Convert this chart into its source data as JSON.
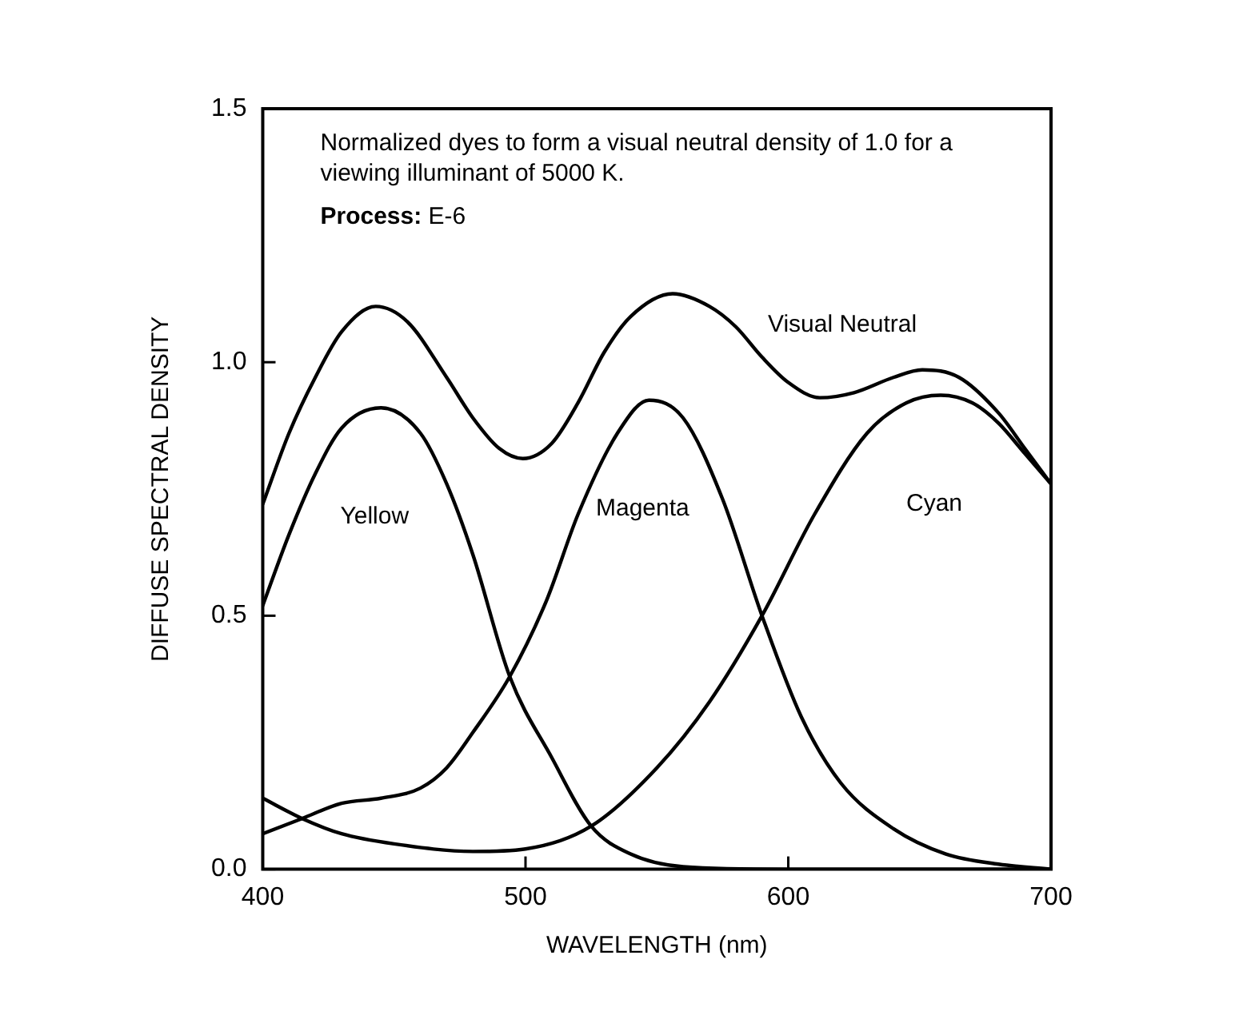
{
  "chart_data": {
    "type": "line",
    "xlabel": "WAVELENGTH (nm)",
    "ylabel": "DIFFUSE SPECTRAL DENSITY",
    "annotations": [
      "Normalized dyes to form a visual neutral density of 1.0 for a viewing illuminant of 5000 K.",
      "Process: E-6"
    ],
    "xlim": [
      400,
      700
    ],
    "xticks": [
      400,
      500,
      600,
      700
    ],
    "ylim": [
      0,
      1.5
    ],
    "yticks": [
      {
        "value": 0,
        "label": "0.0"
      },
      0.5,
      {
        "value": 1,
        "label": "1.0"
      },
      1.5
    ],
    "grid": false,
    "legend": false,
    "marker": "none",
    "line_style": "solid",
    "series": [
      {
        "name": "Visual Neutral",
        "color": "#000000",
        "x": [
          400,
          410,
          420,
          430,
          443,
          455,
          470,
          480,
          490,
          499,
          510,
          520,
          530,
          540,
          556,
          570,
          580,
          590,
          600,
          612,
          625,
          640,
          651,
          665,
          680,
          690,
          700
        ],
        "values": [
          0.72,
          0.86,
          0.97,
          1.06,
          1.11,
          1.08,
          0.97,
          0.89,
          0.83,
          0.81,
          0.84,
          0.92,
          1.02,
          1.09,
          1.135,
          1.11,
          1.07,
          1.01,
          0.96,
          0.93,
          0.94,
          0.97,
          0.985,
          0.97,
          0.9,
          0.83,
          0.76
        ]
      },
      {
        "name": "Yellow",
        "color": "#000000",
        "x": [
          400,
          410,
          420,
          430,
          445,
          460,
          470,
          480,
          494,
          510,
          525,
          540,
          560,
          600,
          700
        ],
        "values": [
          0.52,
          0.66,
          0.78,
          0.87,
          0.91,
          0.86,
          0.76,
          0.62,
          0.38,
          0.22,
          0.085,
          0.03,
          0.005,
          0,
          0
        ]
      },
      {
        "name": "Magenta",
        "color": "#000000",
        "x": [
          400,
          415,
          430,
          445,
          460,
          470,
          480,
          494,
          508,
          520,
          535,
          547,
          560,
          575,
          590,
          605,
          620,
          640,
          660,
          680,
          700
        ],
        "values": [
          0.07,
          0.1,
          0.13,
          0.14,
          0.16,
          0.2,
          0.27,
          0.38,
          0.53,
          0.7,
          0.86,
          0.925,
          0.89,
          0.73,
          0.5,
          0.3,
          0.17,
          0.08,
          0.03,
          0.01,
          0
        ]
      },
      {
        "name": "Cyan",
        "color": "#000000",
        "x": [
          400,
          415,
          430,
          450,
          480,
          500,
          525,
          550,
          570,
          590,
          610,
          630,
          645,
          658,
          670,
          680,
          690,
          700
        ],
        "values": [
          0.14,
          0.1,
          0.07,
          0.05,
          0.035,
          0.04,
          0.085,
          0.2,
          0.33,
          0.5,
          0.7,
          0.86,
          0.92,
          0.935,
          0.92,
          0.88,
          0.82,
          0.76
        ]
      }
    ]
  }
}
